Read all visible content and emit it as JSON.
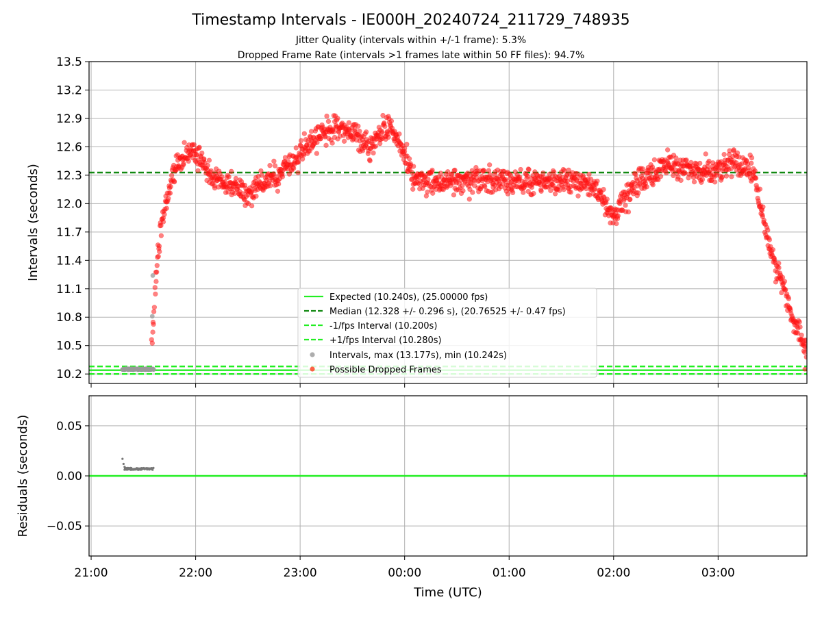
{
  "figure": {
    "title": "Timestamp Intervals - IE000H_20240724_211729_748935",
    "subtitle_1": "Jitter Quality (intervals within +/-1 frame): 5.3%",
    "subtitle_2": "Dropped Frame Rate (intervals >1 frames late within 50 FF files): 94.7%"
  },
  "chart_data": [
    {
      "type": "scatter",
      "panel": "intervals",
      "ylabel": "Intervals (seconds)",
      "ylim": [
        10.1,
        13.5
      ],
      "yticks": [
        "10.2",
        "10.5",
        "10.8",
        "11.1",
        "11.4",
        "11.7",
        "12.0",
        "12.3",
        "12.6",
        "12.9",
        "13.2",
        "13.5"
      ],
      "ytick_values": [
        10.2,
        10.5,
        10.8,
        11.1,
        11.4,
        11.7,
        12.0,
        12.3,
        12.6,
        12.9,
        13.2,
        13.5
      ],
      "x_unit": "hours since 21:00 UTC",
      "xlim": [
        -0.02,
        6.85
      ],
      "grid": true,
      "legend_position": "lower-center",
      "reference_lines": [
        {
          "name": "Expected (10.240s), (25.00000 fps)",
          "y": 10.24,
          "style": "solid",
          "color": "#22ee22"
        },
        {
          "name": "Median (12.328 +/- 0.296 s), (20.76525 +/- 0.47 fps)",
          "y": 12.328,
          "style": "dashed",
          "color": "#118811"
        },
        {
          "name": "-1/fps Interval (10.200s)",
          "y": 10.2,
          "style": "dashed",
          "color": "#22ee22"
        },
        {
          "name": "+1/fps Interval (10.280s)",
          "y": 10.28,
          "style": "dashed",
          "color": "#22ee22"
        }
      ],
      "series": [
        {
          "name": "Intervals, max (13.177s), min (10.242s)",
          "color": "#999999",
          "x_range": [
            0.3,
            0.6
          ],
          "y": 10.25
        },
        {
          "name": "Possible Dropped Frames",
          "color": "#ff0000",
          "profile_x": [
            0.58,
            0.62,
            0.66,
            0.72,
            0.78,
            0.85,
            0.95,
            1.05,
            1.15,
            1.3,
            1.5,
            1.7,
            1.9,
            2.1,
            2.3,
            2.5,
            2.65,
            2.85,
            3.0,
            3.1,
            3.3,
            3.6,
            3.9,
            4.2,
            4.5,
            4.8,
            5.0,
            5.2,
            5.4,
            5.6,
            5.8,
            6.0,
            6.15,
            6.35,
            6.4,
            6.5,
            6.6,
            6.7,
            6.85
          ],
          "profile_y": [
            10.5,
            11.2,
            11.7,
            12.0,
            12.3,
            12.45,
            12.55,
            12.45,
            12.3,
            12.2,
            12.1,
            12.25,
            12.4,
            12.65,
            12.8,
            12.75,
            12.6,
            12.85,
            12.55,
            12.25,
            12.2,
            12.25,
            12.25,
            12.2,
            12.25,
            12.2,
            11.85,
            12.2,
            12.35,
            12.4,
            12.35,
            12.35,
            12.45,
            12.3,
            12.0,
            11.5,
            11.2,
            10.85,
            10.45
          ]
        }
      ]
    },
    {
      "type": "scatter",
      "panel": "residuals",
      "ylabel": "Residuals (seconds)",
      "xlabel": "Time (UTC)",
      "ylim": [
        -0.08,
        0.08
      ],
      "yticks": [
        "−0.05",
        "0.00",
        "0.05"
      ],
      "ytick_values": [
        -0.05,
        0.0,
        0.05
      ],
      "xlim": [
        -0.02,
        6.85
      ],
      "xticks": [
        "21:00",
        "22:00",
        "23:00",
        "00:00",
        "01:00",
        "02:00",
        "03:00"
      ],
      "xtick_values": [
        0,
        1,
        2,
        3,
        4,
        5,
        6
      ],
      "grid": true,
      "zero_line_color": "#22ee22",
      "points": [
        [
          0.3,
          0.017
        ],
        [
          0.31,
          0.012
        ],
        [
          0.32,
          0.009
        ],
        [
          0.33,
          0.008
        ],
        [
          6.83,
          0.002
        ],
        [
          6.85,
          0.047
        ]
      ],
      "cluster": {
        "x_range": [
          0.3,
          0.6
        ],
        "y": 0.007
      }
    }
  ]
}
